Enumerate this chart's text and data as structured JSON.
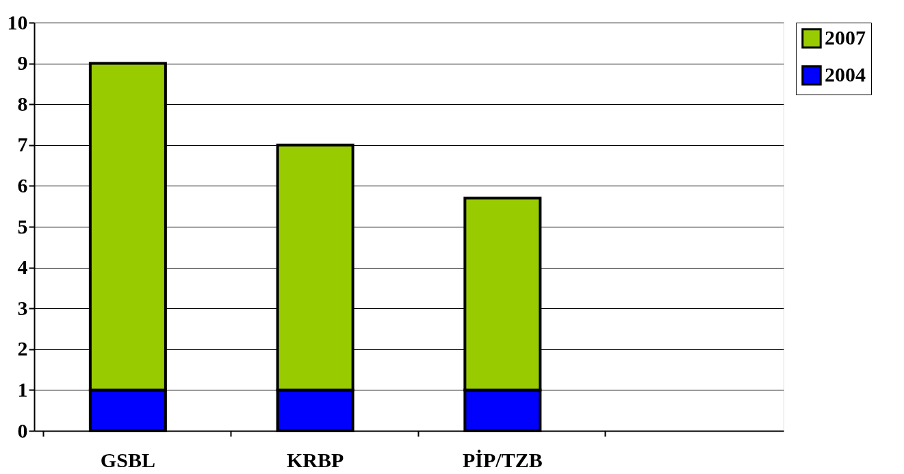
{
  "chart_data": {
    "type": "bar",
    "stacked": true,
    "categories": [
      "GSBL",
      "KRBP",
      "PİP/TZB",
      null
    ],
    "series": [
      {
        "name": "2004",
        "color": "#0000ff",
        "values": [
          1,
          1,
          1,
          null
        ]
      },
      {
        "name": "2007",
        "color": "#99cc00",
        "values": [
          8,
          6,
          4.7,
          null
        ]
      }
    ],
    "ylim": [
      0,
      10
    ],
    "yticks": [
      0,
      1,
      2,
      3,
      4,
      5,
      6,
      7,
      8,
      9,
      10
    ],
    "grid": "y",
    "legend": "right"
  }
}
